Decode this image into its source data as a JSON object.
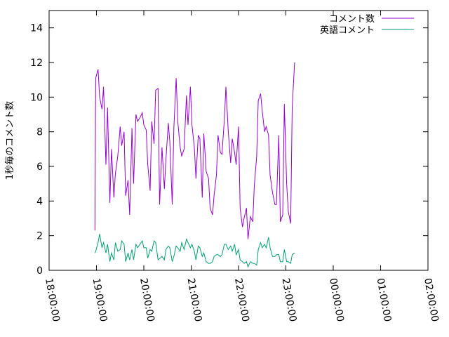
{
  "chart_data": {
    "type": "line",
    "ylabel": "1秒毎のコメント数",
    "xlabel": "",
    "xlim": [
      "18:00:00",
      "02:00:00"
    ],
    "ylim": [
      0,
      15
    ],
    "x_ticks": [
      "18:00:00",
      "19:00:00",
      "20:00:00",
      "21:00:00",
      "22:00:00",
      "23:00:00",
      "00:00:00",
      "01:00:00",
      "02:00:00"
    ],
    "y_ticks": [
      0,
      2,
      4,
      6,
      8,
      10,
      12,
      14
    ],
    "grid": false,
    "legend_position": "top-right",
    "series": [
      {
        "name": "コメント数",
        "color": "#9400d3",
        "points": [
          [
            "18:58",
            2.3
          ],
          [
            "18:59",
            11.1
          ],
          [
            "19:02",
            11.6
          ],
          [
            "19:04",
            10.0
          ],
          [
            "19:07",
            9.3
          ],
          [
            "19:09",
            10.6
          ],
          [
            "19:12",
            6.1
          ],
          [
            "19:14",
            9.4
          ],
          [
            "19:17",
            3.9
          ],
          [
            "19:19",
            7.0
          ],
          [
            "19:22",
            4.2
          ],
          [
            "19:24",
            5.6
          ],
          [
            "19:27",
            6.6
          ],
          [
            "19:30",
            8.3
          ],
          [
            "19:32",
            7.2
          ],
          [
            "19:35",
            8.0
          ],
          [
            "19:37",
            4.3
          ],
          [
            "19:40",
            5.2
          ],
          [
            "19:42",
            3.2
          ],
          [
            "19:45",
            8.2
          ],
          [
            "19:47",
            5.0
          ],
          [
            "19:50",
            9.0
          ],
          [
            "19:52",
            8.6
          ],
          [
            "19:55",
            8.8
          ],
          [
            "19:58",
            9.1
          ],
          [
            "20:00",
            8.4
          ],
          [
            "20:03",
            8.1
          ],
          [
            "20:05",
            6.1
          ],
          [
            "20:08",
            4.6
          ],
          [
            "20:10",
            8.6
          ],
          [
            "20:13",
            7.3
          ],
          [
            "20:15",
            10.4
          ],
          [
            "20:18",
            10.5
          ],
          [
            "20:20",
            3.8
          ],
          [
            "20:23",
            7.1
          ],
          [
            "20:26",
            4.7
          ],
          [
            "20:28",
            6.4
          ],
          [
            "20:31",
            8.5
          ],
          [
            "20:33",
            7.4
          ],
          [
            "20:36",
            3.8
          ],
          [
            "20:38",
            8.2
          ],
          [
            "20:41",
            11.1
          ],
          [
            "20:43",
            8.6
          ],
          [
            "20:46",
            7.1
          ],
          [
            "20:48",
            6.6
          ],
          [
            "20:51",
            7.0
          ],
          [
            "20:54",
            10.1
          ],
          [
            "20:56",
            8.4
          ],
          [
            "20:59",
            10.6
          ],
          [
            "21:01",
            8.4
          ],
          [
            "21:04",
            7.1
          ],
          [
            "21:06",
            5.3
          ],
          [
            "21:09",
            7.8
          ],
          [
            "21:11",
            7.6
          ],
          [
            "21:14",
            4.2
          ],
          [
            "21:16",
            7.9
          ],
          [
            "21:19",
            5.7
          ],
          [
            "21:22",
            5.3
          ],
          [
            "21:24",
            3.6
          ],
          [
            "21:27",
            3.2
          ],
          [
            "21:29",
            4.3
          ],
          [
            "21:32",
            5.5
          ],
          [
            "21:34",
            7.8
          ],
          [
            "21:37",
            6.8
          ],
          [
            "21:39",
            6.7
          ],
          [
            "21:42",
            8.7
          ],
          [
            "21:44",
            10.6
          ],
          [
            "21:47",
            8.0
          ],
          [
            "21:50",
            6.2
          ],
          [
            "21:52",
            7.6
          ],
          [
            "21:55",
            6.8
          ],
          [
            "21:57",
            6.1
          ],
          [
            "22:00",
            8.3
          ],
          [
            "22:02",
            3.6
          ],
          [
            "22:05",
            2.5
          ],
          [
            "22:07",
            3.0
          ],
          [
            "22:10",
            3.6
          ],
          [
            "22:12",
            1.8
          ],
          [
            "22:15",
            3.1
          ],
          [
            "22:18",
            2.8
          ],
          [
            "22:20",
            4.9
          ],
          [
            "22:23",
            6.6
          ],
          [
            "22:25",
            9.8
          ],
          [
            "22:28",
            10.2
          ],
          [
            "22:30",
            9.2
          ],
          [
            "22:33",
            8.0
          ],
          [
            "22:35",
            8.3
          ],
          [
            "22:38",
            7.8
          ],
          [
            "22:40",
            5.5
          ],
          [
            "22:43",
            4.5
          ],
          [
            "22:46",
            3.8
          ],
          [
            "22:48",
            3.8
          ],
          [
            "22:51",
            7.8
          ],
          [
            "22:53",
            2.8
          ],
          [
            "22:56",
            3.2
          ],
          [
            "22:58",
            9.6
          ],
          [
            "23:01",
            5.0
          ],
          [
            "23:03",
            3.4
          ],
          [
            "23:06",
            2.7
          ],
          [
            "23:08",
            9.4
          ],
          [
            "23:11",
            12.0
          ]
        ]
      },
      {
        "name": "英語コメント",
        "color": "#009e73",
        "points": [
          [
            "18:58",
            1.0
          ],
          [
            "18:59",
            1.1
          ],
          [
            "19:02",
            1.6
          ],
          [
            "19:04",
            2.1
          ],
          [
            "19:07",
            1.3
          ],
          [
            "19:09",
            1.6
          ],
          [
            "19:12",
            1.0
          ],
          [
            "19:14",
            1.5
          ],
          [
            "19:17",
            0.5
          ],
          [
            "19:19",
            1.0
          ],
          [
            "19:22",
            0.6
          ],
          [
            "19:24",
            1.6
          ],
          [
            "19:27",
            1.1
          ],
          [
            "19:30",
            1.2
          ],
          [
            "19:32",
            1.7
          ],
          [
            "19:35",
            1.5
          ],
          [
            "19:37",
            0.5
          ],
          [
            "19:40",
            1.0
          ],
          [
            "19:42",
            0.6
          ],
          [
            "19:45",
            1.2
          ],
          [
            "19:47",
            0.6
          ],
          [
            "19:50",
            1.5
          ],
          [
            "19:52",
            1.3
          ],
          [
            "19:55",
            1.5
          ],
          [
            "19:58",
            1.7
          ],
          [
            "20:00",
            1.3
          ],
          [
            "20:03",
            1.3
          ],
          [
            "20:05",
            0.7
          ],
          [
            "20:08",
            1.2
          ],
          [
            "20:10",
            1.1
          ],
          [
            "20:13",
            1.7
          ],
          [
            "20:15",
            1.6
          ],
          [
            "20:18",
            0.6
          ],
          [
            "20:23",
            0.8
          ],
          [
            "20:26",
            0.6
          ],
          [
            "20:28",
            1.2
          ],
          [
            "20:31",
            1.4
          ],
          [
            "20:33",
            1.3
          ],
          [
            "20:36",
            0.5
          ],
          [
            "20:38",
            0.8
          ],
          [
            "20:41",
            1.4
          ],
          [
            "20:43",
            1.3
          ],
          [
            "20:46",
            1.1
          ],
          [
            "20:48",
            1.6
          ],
          [
            "20:51",
            1.2
          ],
          [
            "20:54",
            1.8
          ],
          [
            "20:56",
            1.6
          ],
          [
            "20:59",
            1.3
          ],
          [
            "21:01",
            1.5
          ],
          [
            "21:04",
            1.1
          ],
          [
            "21:06",
            0.6
          ],
          [
            "21:09",
            1.4
          ],
          [
            "21:11",
            1.3
          ],
          [
            "21:14",
            0.8
          ],
          [
            "21:16",
            1.0
          ],
          [
            "21:19",
            0.5
          ],
          [
            "21:22",
            0.4
          ],
          [
            "21:24",
            0.4
          ],
          [
            "21:27",
            0.5
          ],
          [
            "21:29",
            0.8
          ],
          [
            "21:32",
            0.9
          ],
          [
            "21:34",
            0.9
          ],
          [
            "21:37",
            0.8
          ],
          [
            "21:39",
            0.9
          ],
          [
            "21:42",
            1.5
          ],
          [
            "21:44",
            1.5
          ],
          [
            "21:47",
            1.2
          ],
          [
            "21:50",
            1.4
          ],
          [
            "21:52",
            1.1
          ],
          [
            "21:55",
            1.5
          ],
          [
            "21:57",
            0.9
          ],
          [
            "22:00",
            1.2
          ],
          [
            "22:02",
            0.6
          ],
          [
            "22:05",
            0.5
          ],
          [
            "22:07",
            0.4
          ],
          [
            "22:10",
            0.5
          ],
          [
            "22:12",
            0.2
          ],
          [
            "22:15",
            0.5
          ],
          [
            "22:18",
            0.4
          ],
          [
            "22:20",
            0.4
          ],
          [
            "22:23",
            0.3
          ],
          [
            "22:25",
            1.2
          ],
          [
            "22:28",
            1.6
          ],
          [
            "22:30",
            1.3
          ],
          [
            "22:33",
            1.5
          ],
          [
            "22:35",
            1.3
          ],
          [
            "22:38",
            1.9
          ],
          [
            "22:40",
            1.3
          ],
          [
            "22:43",
            0.8
          ],
          [
            "22:46",
            0.8
          ],
          [
            "22:48",
            0.9
          ],
          [
            "22:51",
            0.9
          ],
          [
            "22:53",
            0.5
          ],
          [
            "22:56",
            0.5
          ],
          [
            "22:58",
            1.2
          ],
          [
            "23:01",
            0.5
          ],
          [
            "23:03",
            0.5
          ],
          [
            "23:06",
            0.4
          ],
          [
            "23:08",
            0.9
          ],
          [
            "23:11",
            1.0
          ]
        ]
      }
    ]
  }
}
